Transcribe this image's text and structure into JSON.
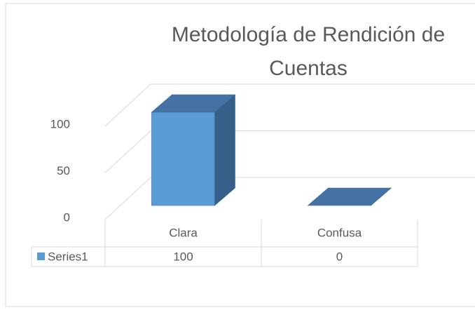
{
  "chart_data": {
    "type": "bar",
    "title": "Metodología de Rendición de Cuentas",
    "categories": [
      "Clara",
      "Confusa"
    ],
    "series": [
      {
        "name": "Series1",
        "color": "#5b9bd5",
        "values": [
          100,
          0
        ]
      }
    ],
    "ylim": [
      0,
      100
    ],
    "yticks": [
      0,
      50,
      100
    ],
    "grid": true
  }
}
